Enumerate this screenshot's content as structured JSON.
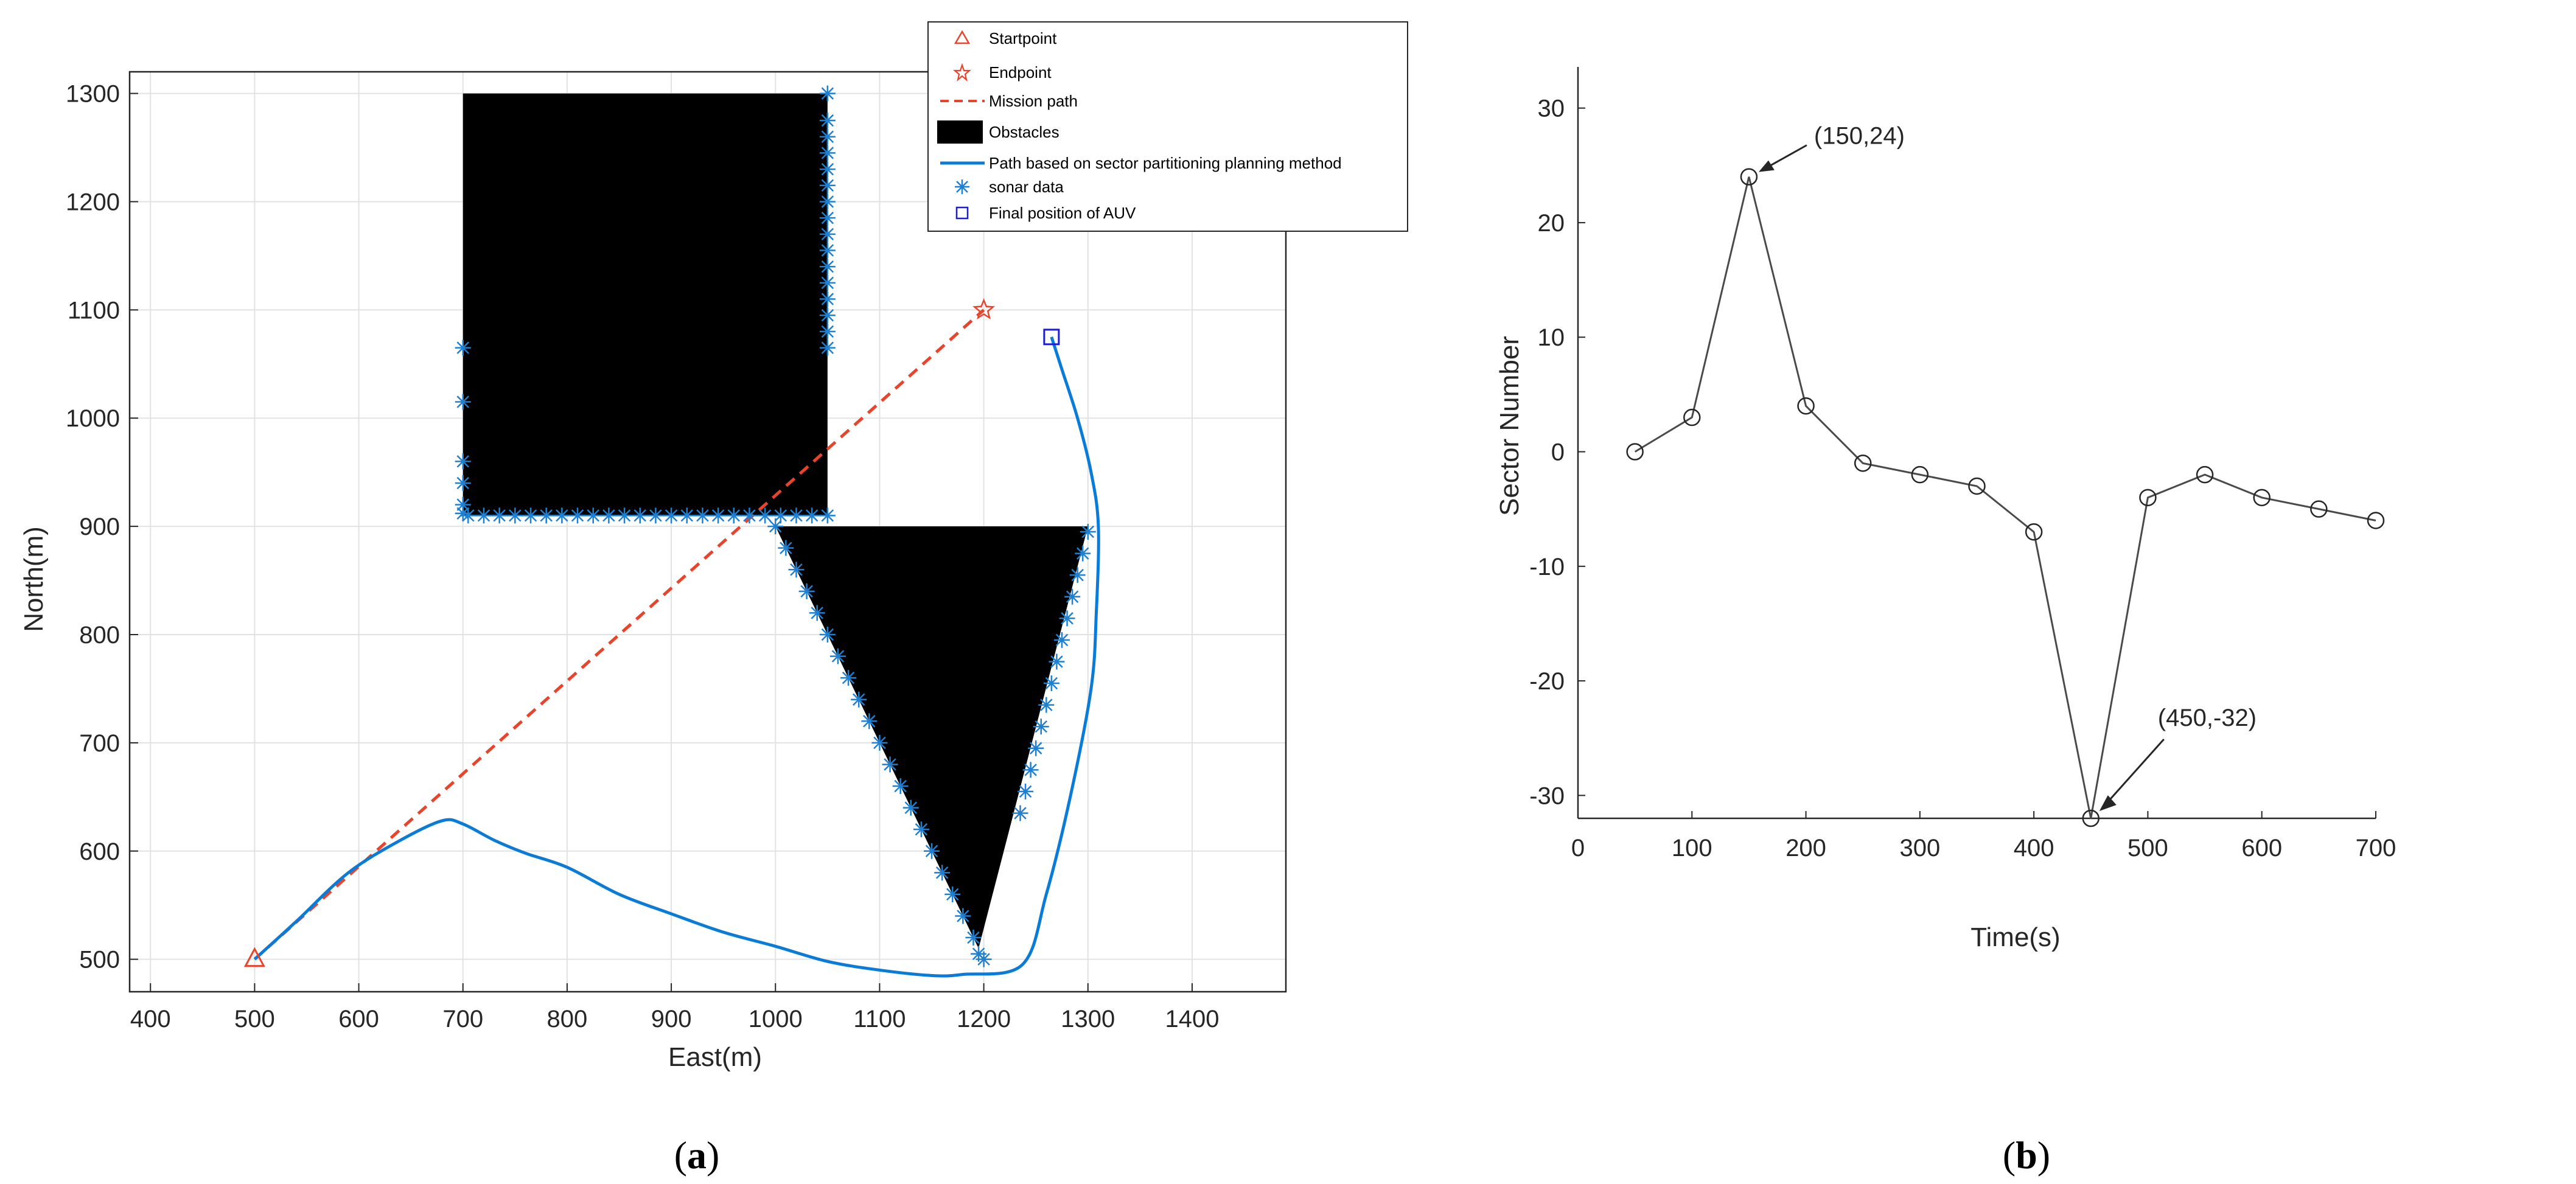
{
  "colors": {
    "mission": "#e8432b",
    "path": "#0a7bd6",
    "sonar": "#1f7fd0",
    "final": "#1d1dd6",
    "obstacle": "#000000",
    "sector_line": "#4a4a4a"
  },
  "panels": {
    "a": {
      "label_open": "(",
      "label_letter": "a",
      "label_close": ")"
    },
    "b": {
      "label_open": "(",
      "label_letter": "b",
      "label_close": ")"
    }
  },
  "chart_data": [
    {
      "type": "line",
      "title": "",
      "xlabel": "East(m)",
      "ylabel": "North(m)",
      "xlim": [
        380,
        1490
      ],
      "ylim": [
        470,
        1320
      ],
      "xticks": [
        400,
        500,
        600,
        700,
        800,
        900,
        1000,
        1100,
        1200,
        1300,
        1400
      ],
      "yticks": [
        500,
        600,
        700,
        800,
        900,
        1000,
        1100,
        1200,
        1300
      ],
      "grid": true,
      "legend_position": "top-right",
      "legend": [
        {
          "key": "startpoint",
          "label": "Startpoint"
        },
        {
          "key": "endpoint",
          "label": "Endpoint"
        },
        {
          "key": "mission",
          "label": "Mission path"
        },
        {
          "key": "obstacles",
          "label": "Obstacles"
        },
        {
          "key": "path",
          "label": "Path based on sector partitioning planning method"
        },
        {
          "key": "sonar",
          "label": "sonar data"
        },
        {
          "key": "final",
          "label": "Final position of AUV"
        }
      ],
      "startpoint": [
        500,
        500
      ],
      "endpoint": [
        1200,
        1100
      ],
      "final_position": [
        1265,
        1075
      ],
      "mission_path": [
        [
          500,
          500
        ],
        [
          1200,
          1100
        ]
      ],
      "obstacles": [
        {
          "shape": "rectangle",
          "points": [
            [
              700,
              910
            ],
            [
              1050,
              910
            ],
            [
              1050,
              1300
            ],
            [
              700,
              1300
            ]
          ]
        },
        {
          "shape": "triangle",
          "points": [
            [
              1000,
              900
            ],
            [
              1300,
              900
            ],
            [
              1195,
              510
            ]
          ]
        }
      ],
      "auv_path": [
        [
          500,
          500
        ],
        [
          540,
          535
        ],
        [
          590,
          580
        ],
        [
          640,
          610
        ],
        [
          680,
          628
        ],
        [
          700,
          625
        ],
        [
          730,
          610
        ],
        [
          760,
          598
        ],
        [
          800,
          585
        ],
        [
          850,
          560
        ],
        [
          900,
          542
        ],
        [
          950,
          525
        ],
        [
          1000,
          512
        ],
        [
          1050,
          498
        ],
        [
          1100,
          490
        ],
        [
          1150,
          485
        ],
        [
          1180,
          486
        ],
        [
          1237,
          495
        ],
        [
          1260,
          560
        ],
        [
          1283,
          650
        ],
        [
          1303,
          750
        ],
        [
          1308,
          820
        ],
        [
          1310,
          900
        ],
        [
          1303,
          950
        ],
        [
          1290,
          1000
        ],
        [
          1275,
          1045
        ],
        [
          1265,
          1075
        ]
      ],
      "sonar_points": [
        [
          700,
          1065
        ],
        [
          700,
          1015
        ],
        [
          700,
          960
        ],
        [
          700,
          940
        ],
        [
          700,
          920
        ],
        [
          700,
          912
        ],
        [
          705,
          910
        ],
        [
          720,
          910
        ],
        [
          735,
          910
        ],
        [
          750,
          910
        ],
        [
          765,
          910
        ],
        [
          780,
          910
        ],
        [
          795,
          910
        ],
        [
          810,
          910
        ],
        [
          825,
          910
        ],
        [
          840,
          910
        ],
        [
          855,
          910
        ],
        [
          870,
          910
        ],
        [
          885,
          910
        ],
        [
          900,
          910
        ],
        [
          915,
          910
        ],
        [
          930,
          910
        ],
        [
          945,
          910
        ],
        [
          960,
          910
        ],
        [
          975,
          910
        ],
        [
          990,
          910
        ],
        [
          1005,
          910
        ],
        [
          1020,
          910
        ],
        [
          1035,
          910
        ],
        [
          1050,
          910
        ],
        [
          1050,
          1065
        ],
        [
          1050,
          1080
        ],
        [
          1050,
          1095
        ],
        [
          1050,
          1110
        ],
        [
          1050,
          1125
        ],
        [
          1050,
          1140
        ],
        [
          1050,
          1155
        ],
        [
          1050,
          1170
        ],
        [
          1050,
          1185
        ],
        [
          1050,
          1200
        ],
        [
          1050,
          1215
        ],
        [
          1050,
          1230
        ],
        [
          1050,
          1245
        ],
        [
          1050,
          1260
        ],
        [
          1050,
          1275
        ],
        [
          1050,
          1300
        ],
        [
          1000,
          900
        ],
        [
          1010,
          880
        ],
        [
          1020,
          860
        ],
        [
          1030,
          840
        ],
        [
          1040,
          820
        ],
        [
          1050,
          800
        ],
        [
          1060,
          780
        ],
        [
          1070,
          760
        ],
        [
          1080,
          740
        ],
        [
          1090,
          720
        ],
        [
          1100,
          700
        ],
        [
          1110,
          680
        ],
        [
          1120,
          660
        ],
        [
          1130,
          640
        ],
        [
          1140,
          620
        ],
        [
          1150,
          600
        ],
        [
          1160,
          580
        ],
        [
          1170,
          560
        ],
        [
          1180,
          540
        ],
        [
          1190,
          520
        ],
        [
          1195,
          505
        ],
        [
          1200,
          500
        ],
        [
          1235,
          635
        ],
        [
          1240,
          655
        ],
        [
          1245,
          675
        ],
        [
          1250,
          695
        ],
        [
          1255,
          715
        ],
        [
          1260,
          735
        ],
        [
          1265,
          755
        ],
        [
          1270,
          775
        ],
        [
          1275,
          795
        ],
        [
          1280,
          815
        ],
        [
          1285,
          835
        ],
        [
          1290,
          855
        ],
        [
          1295,
          875
        ],
        [
          1300,
          895
        ]
      ]
    },
    {
      "type": "line",
      "title": "",
      "xlabel": "Time(s)",
      "ylabel": "Sector Number",
      "xlim": [
        0,
        700
      ],
      "ylim": [
        -32,
        32
      ],
      "xticks": [
        0,
        100,
        200,
        300,
        400,
        500,
        600,
        700
      ],
      "yticks": [
        -30,
        -20,
        -10,
        0,
        10,
        20,
        30
      ],
      "grid": false,
      "x": [
        50,
        100,
        150,
        200,
        250,
        300,
        350,
        400,
        450,
        500,
        550,
        600,
        650,
        700
      ],
      "y": [
        0,
        3,
        24,
        4,
        -1,
        -2,
        -3,
        -7,
        -32,
        -4,
        -2,
        -4,
        -5,
        -6
      ],
      "annotations": [
        {
          "text": "(150,24)",
          "x": 150,
          "y": 24
        },
        {
          "text": "(450,-32)",
          "x": 450,
          "y": -32
        }
      ]
    }
  ]
}
